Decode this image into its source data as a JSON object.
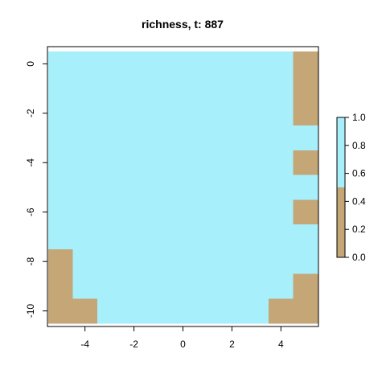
{
  "chart_data": {
    "type": "heatmap",
    "title": "richness, t: 887",
    "xlabel": "",
    "ylabel": "",
    "xlim": [
      -5.5,
      5.5
    ],
    "ylim": [
      -10.5,
      0.5
    ],
    "x_ticks": [
      -4,
      -2,
      0,
      2,
      4
    ],
    "y_ticks": [
      0,
      -2,
      -4,
      -6,
      -8,
      -10
    ],
    "x_tick_labels": [
      "-4",
      "-2",
      "0",
      "2",
      "4"
    ],
    "y_tick_labels": [
      "0",
      "-2",
      "-4",
      "-6",
      "-8",
      "-10"
    ],
    "columns_x": [
      -5,
      -4,
      -3,
      -2,
      -1,
      0,
      1,
      2,
      3,
      4,
      5
    ],
    "rows_y": [
      0,
      -1,
      -2,
      -3,
      -4,
      -5,
      -6,
      -7,
      -8,
      -9,
      -10
    ],
    "values": [
      [
        1,
        1,
        1,
        1,
        1,
        1,
        1,
        1,
        1,
        1,
        0
      ],
      [
        1,
        1,
        1,
        1,
        1,
        1,
        1,
        1,
        1,
        1,
        0
      ],
      [
        1,
        1,
        1,
        1,
        1,
        1,
        1,
        1,
        1,
        1,
        0
      ],
      [
        1,
        1,
        1,
        1,
        1,
        1,
        1,
        1,
        1,
        1,
        1
      ],
      [
        1,
        1,
        1,
        1,
        1,
        1,
        1,
        1,
        1,
        1,
        0
      ],
      [
        1,
        1,
        1,
        1,
        1,
        1,
        1,
        1,
        1,
        1,
        1
      ],
      [
        1,
        1,
        1,
        1,
        1,
        1,
        1,
        1,
        1,
        1,
        0
      ],
      [
        1,
        1,
        1,
        1,
        1,
        1,
        1,
        1,
        1,
        1,
        1
      ],
      [
        0,
        1,
        1,
        1,
        1,
        1,
        1,
        1,
        1,
        1,
        1
      ],
      [
        0,
        1,
        1,
        1,
        1,
        1,
        1,
        1,
        1,
        1,
        0
      ],
      [
        0,
        0,
        1,
        1,
        1,
        1,
        1,
        1,
        1,
        0,
        0
      ]
    ],
    "legend": {
      "position": "right",
      "range": [
        0,
        1
      ],
      "ticks": [
        0,
        0.2,
        0.4,
        0.6,
        0.8,
        1
      ],
      "tick_labels": [
        "0.0",
        "0.2",
        "0.4",
        "0.6",
        "0.8",
        "1.0"
      ],
      "color_low": "#C4A677",
      "color_high": "#A8EFFC",
      "break": 0.5
    },
    "grid": false
  }
}
